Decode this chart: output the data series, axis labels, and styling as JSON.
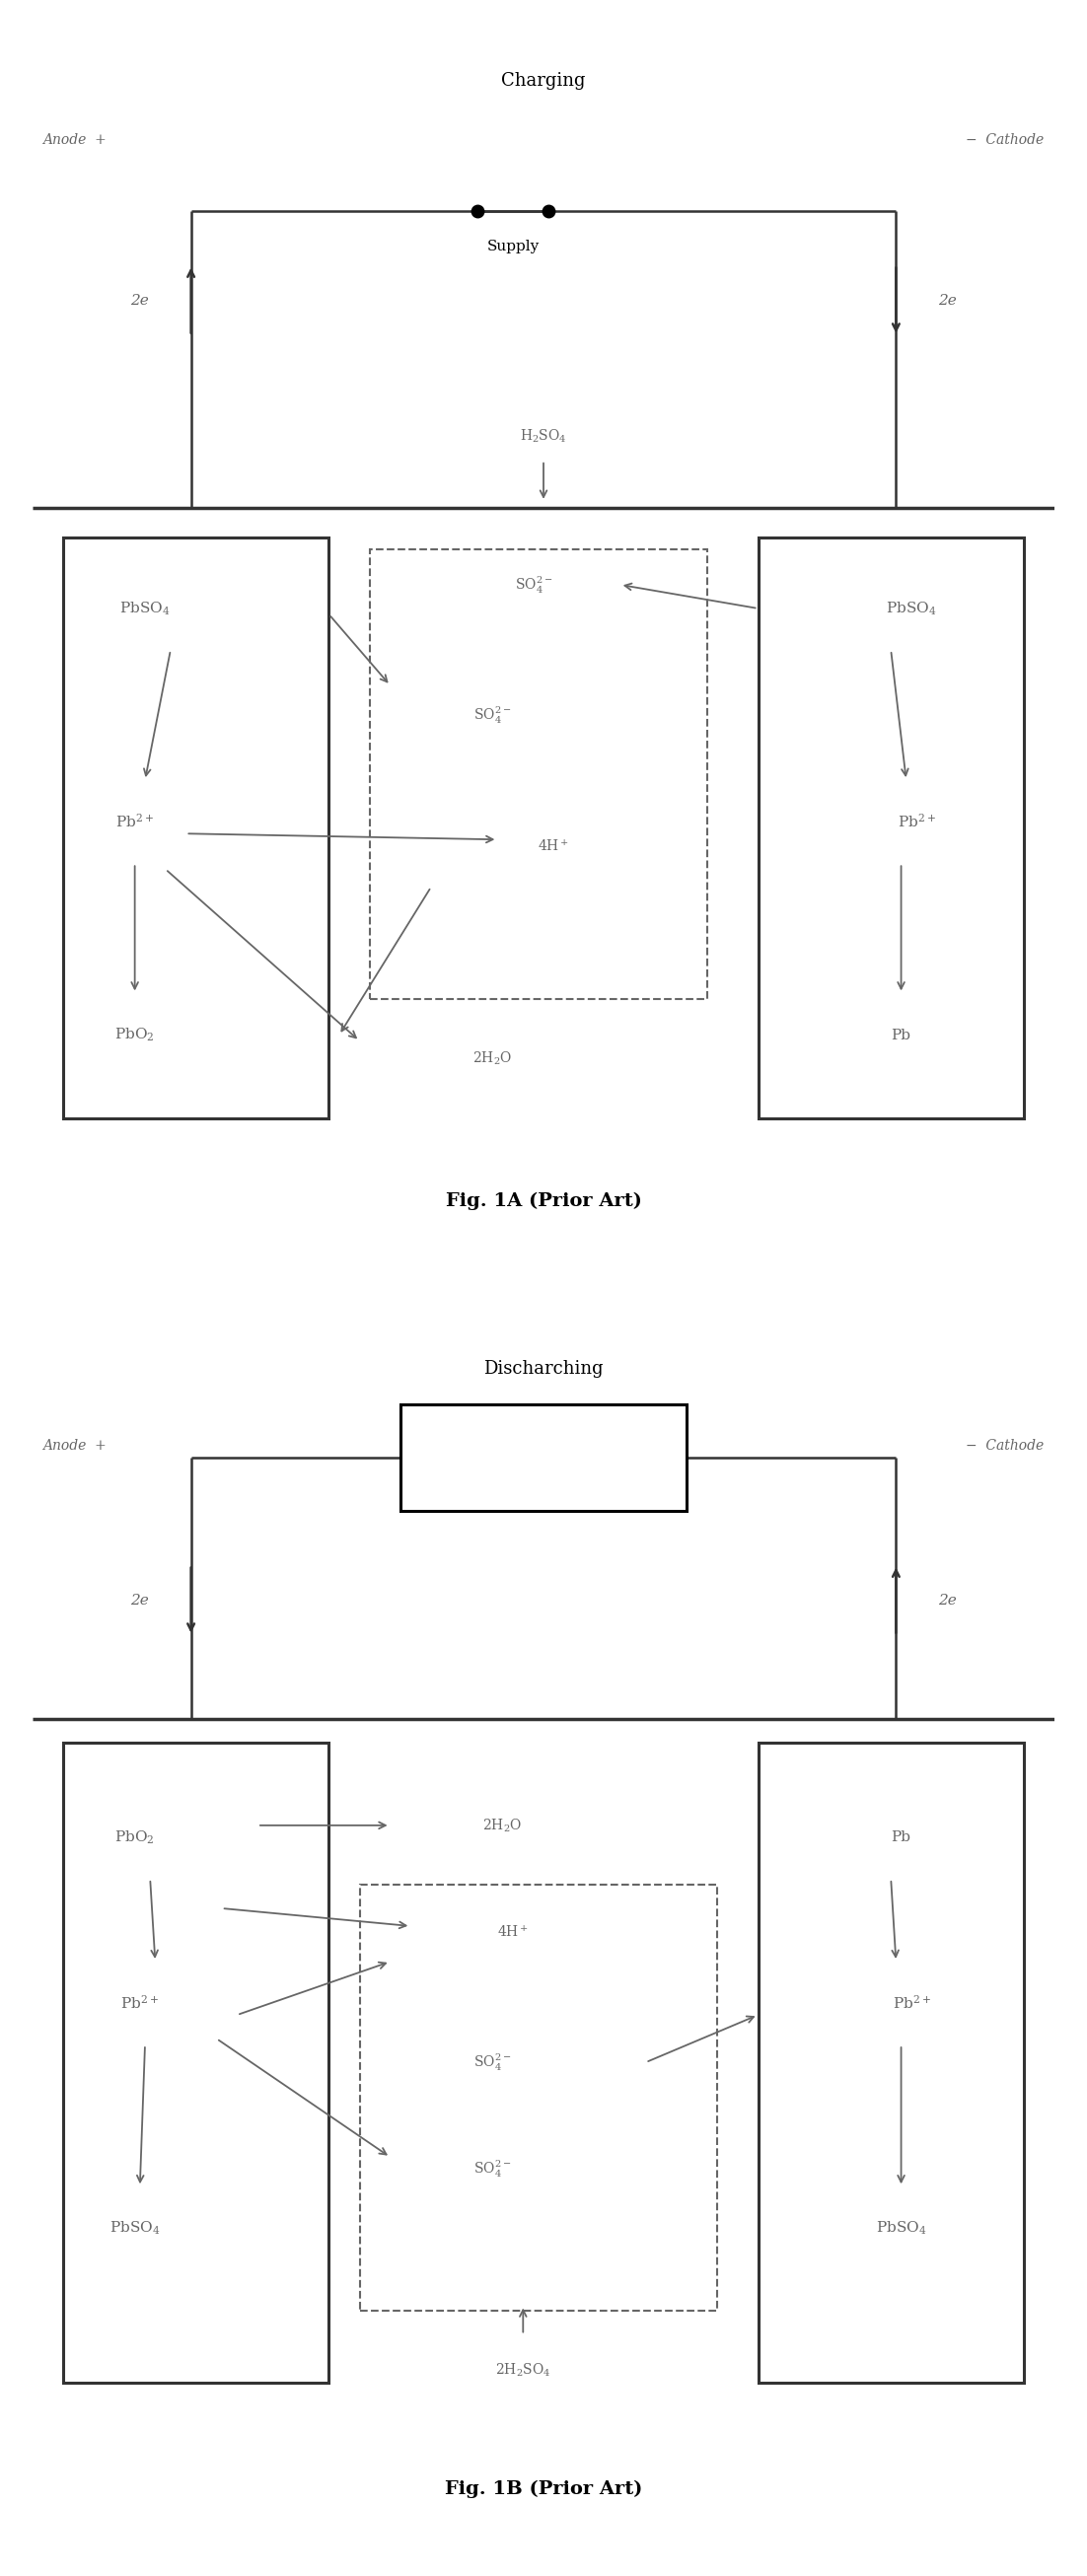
{
  "fig_width": 11.02,
  "fig_height": 26.12,
  "lc": "#666666",
  "lc_dark": "#333333",
  "title_A": "Charging",
  "title_B": "Discharching",
  "caption_A": "Fig. 1A (Prior Art)",
  "caption_B": "Fig. 1B (Prior Art)"
}
